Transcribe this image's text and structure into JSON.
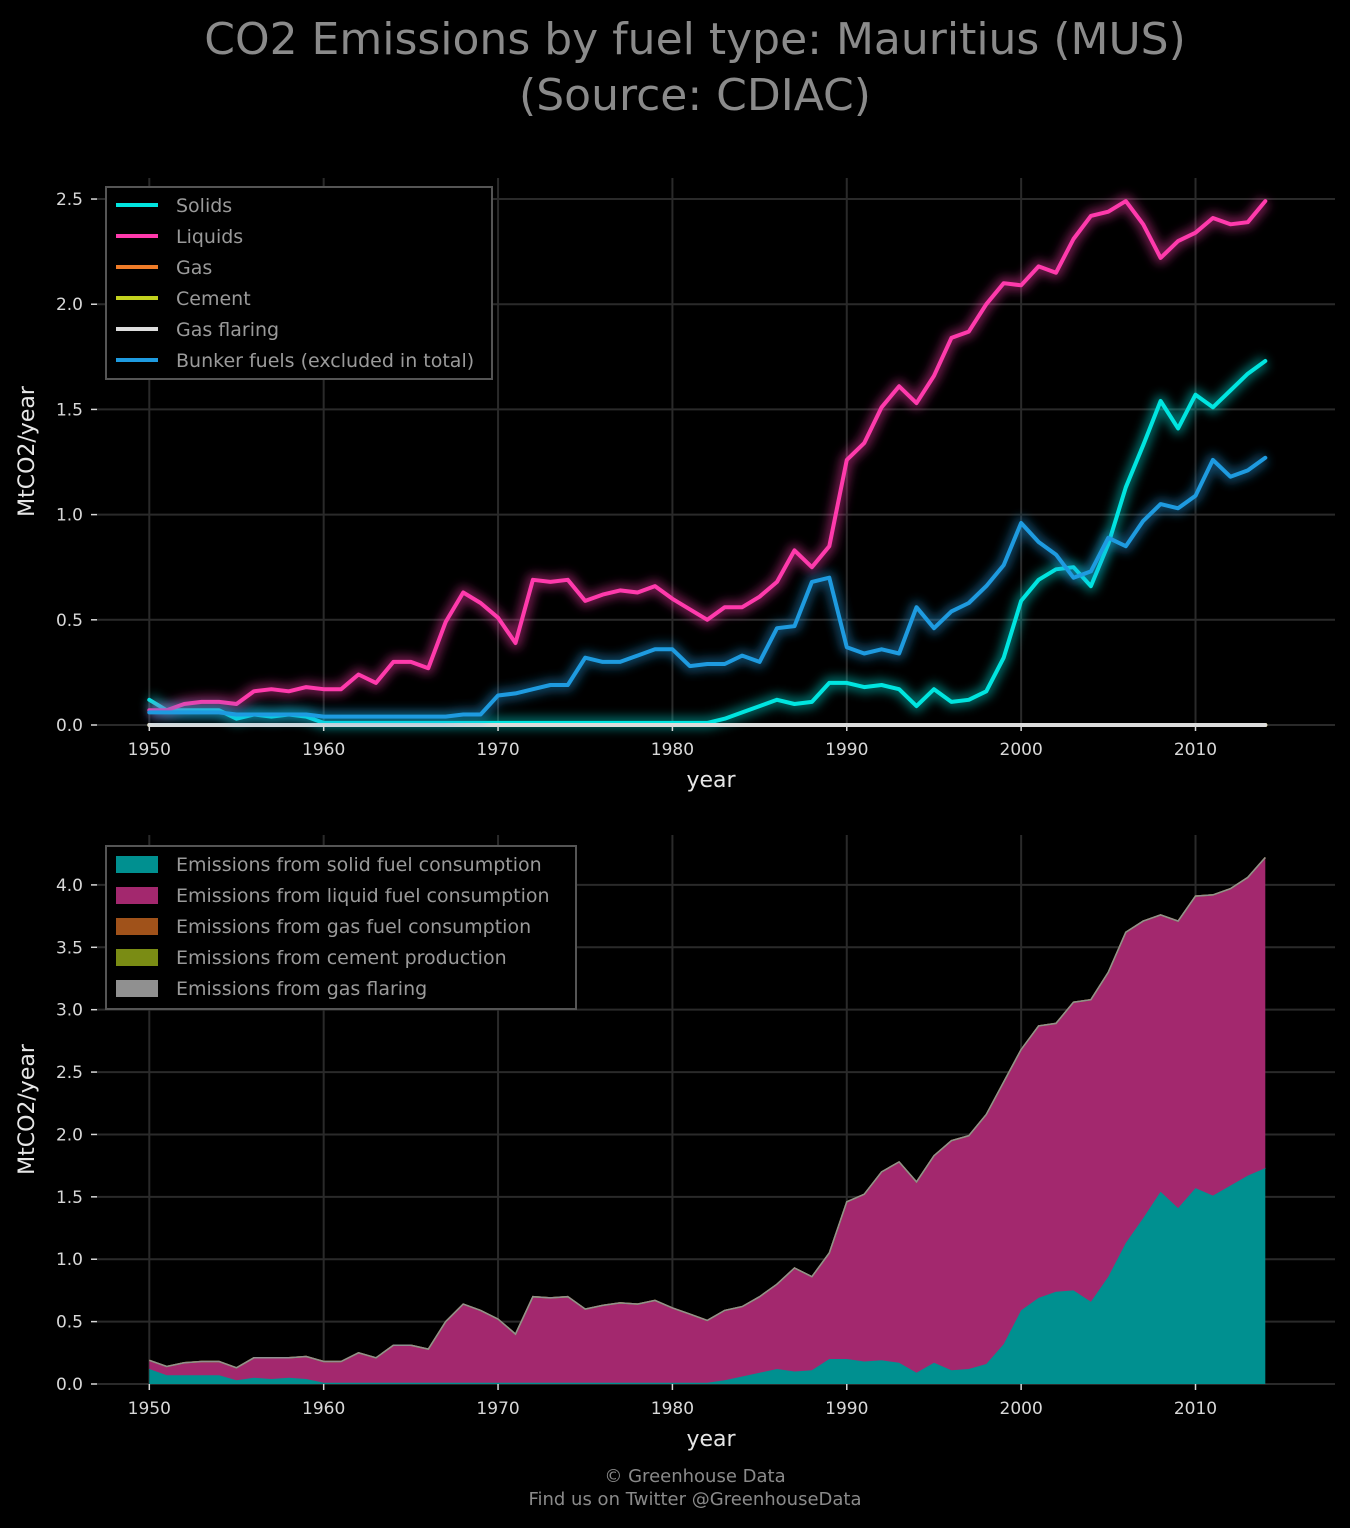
{
  "title_line1": "CO2 Emissions by fuel type: Mauritius (MUS)",
  "title_line2": "(Source: CDIAC)",
  "footer_line1": "© Greenhouse Data",
  "footer_line2": "Find us on Twitter @GreenhouseData",
  "chart_data": [
    {
      "type": "line",
      "xlabel": "year",
      "ylabel": "MtCO2/year",
      "xlim": [
        1947,
        2018
      ],
      "ylim": [
        0,
        2.6
      ],
      "xticks": [
        1950,
        1960,
        1970,
        1980,
        1990,
        2000,
        2010
      ],
      "yticks": [
        0.0,
        0.5,
        1.0,
        1.5,
        2.0,
        2.5
      ],
      "grid": true,
      "legend_position": "top-left",
      "x": [
        1950,
        1951,
        1952,
        1953,
        1954,
        1955,
        1956,
        1957,
        1958,
        1959,
        1960,
        1961,
        1962,
        1963,
        1964,
        1965,
        1966,
        1967,
        1968,
        1969,
        1970,
        1971,
        1972,
        1973,
        1974,
        1975,
        1976,
        1977,
        1978,
        1979,
        1980,
        1981,
        1982,
        1983,
        1984,
        1985,
        1986,
        1987,
        1988,
        1989,
        1990,
        1991,
        1992,
        1993,
        1994,
        1995,
        1996,
        1997,
        1998,
        1999,
        2000,
        2001,
        2002,
        2003,
        2004,
        2005,
        2006,
        2007,
        2008,
        2009,
        2010,
        2011,
        2012,
        2013,
        2014
      ],
      "series": [
        {
          "name": "Solids",
          "color": "#00e5e0",
          "values": [
            0.12,
            0.07,
            0.07,
            0.07,
            0.07,
            0.03,
            0.05,
            0.04,
            0.05,
            0.04,
            0.01,
            0.01,
            0.01,
            0.01,
            0.01,
            0.01,
            0.01,
            0.01,
            0.01,
            0.01,
            0.01,
            0.01,
            0.01,
            0.01,
            0.01,
            0.01,
            0.01,
            0.01,
            0.01,
            0.01,
            0.01,
            0.01,
            0.01,
            0.03,
            0.06,
            0.09,
            0.12,
            0.1,
            0.11,
            0.2,
            0.2,
            0.18,
            0.19,
            0.17,
            0.09,
            0.17,
            0.11,
            0.12,
            0.16,
            0.32,
            0.59,
            0.69,
            0.74,
            0.75,
            0.66,
            0.86,
            1.13,
            1.33,
            1.54,
            1.41,
            1.57,
            1.51,
            1.59,
            1.67,
            1.73
          ]
        },
        {
          "name": "Liquids",
          "color": "#ff3aac",
          "values": [
            0.07,
            0.07,
            0.1,
            0.11,
            0.11,
            0.1,
            0.16,
            0.17,
            0.16,
            0.18,
            0.17,
            0.17,
            0.24,
            0.2,
            0.3,
            0.3,
            0.27,
            0.49,
            0.63,
            0.58,
            0.51,
            0.39,
            0.69,
            0.68,
            0.69,
            0.59,
            0.62,
            0.64,
            0.63,
            0.66,
            0.6,
            0.55,
            0.5,
            0.56,
            0.56,
            0.61,
            0.68,
            0.83,
            0.75,
            0.85,
            1.26,
            1.34,
            1.51,
            1.61,
            1.53,
            1.66,
            1.84,
            1.87,
            2.0,
            2.1,
            2.09,
            2.18,
            2.15,
            2.31,
            2.42,
            2.44,
            2.49,
            2.38,
            2.22,
            2.3,
            2.34,
            2.41,
            2.38,
            2.39,
            2.49
          ]
        },
        {
          "name": "Gas",
          "color": "#f07c28",
          "values": [
            0,
            0,
            0,
            0,
            0,
            0,
            0,
            0,
            0,
            0,
            0,
            0,
            0,
            0,
            0,
            0,
            0,
            0,
            0,
            0,
            0,
            0,
            0,
            0,
            0,
            0,
            0,
            0,
            0,
            0,
            0,
            0,
            0,
            0,
            0,
            0,
            0,
            0,
            0,
            0,
            0,
            0,
            0,
            0,
            0,
            0,
            0,
            0,
            0,
            0,
            0,
            0,
            0,
            0,
            0,
            0,
            0,
            0,
            0,
            0,
            0,
            0,
            0,
            0,
            0
          ]
        },
        {
          "name": "Cement",
          "color": "#c3d21e",
          "values": [
            0,
            0,
            0,
            0,
            0,
            0,
            0,
            0,
            0,
            0,
            0,
            0,
            0,
            0,
            0,
            0,
            0,
            0,
            0,
            0,
            0,
            0,
            0,
            0,
            0,
            0,
            0,
            0,
            0,
            0,
            0,
            0,
            0,
            0,
            0,
            0,
            0,
            0,
            0,
            0,
            0,
            0,
            0,
            0,
            0,
            0,
            0,
            0,
            0,
            0,
            0,
            0,
            0,
            0,
            0,
            0,
            0,
            0,
            0,
            0,
            0,
            0,
            0,
            0,
            0
          ]
        },
        {
          "name": "Gas flaring",
          "color": "#dddddd",
          "values": [
            0,
            0,
            0,
            0,
            0,
            0,
            0,
            0,
            0,
            0,
            0,
            0,
            0,
            0,
            0,
            0,
            0,
            0,
            0,
            0,
            0,
            0,
            0,
            0,
            0,
            0,
            0,
            0,
            0,
            0,
            0,
            0,
            0,
            0,
            0,
            0,
            0,
            0,
            0,
            0,
            0,
            0,
            0,
            0,
            0,
            0,
            0,
            0,
            0,
            0,
            0,
            0,
            0,
            0,
            0,
            0,
            0,
            0,
            0,
            0,
            0,
            0,
            0,
            0,
            0
          ]
        },
        {
          "name": "Bunker fuels (excluded in total)",
          "color": "#1e9be0",
          "values": [
            0.06,
            0.06,
            0.06,
            0.06,
            0.06,
            0.05,
            0.05,
            0.05,
            0.05,
            0.05,
            0.04,
            0.04,
            0.04,
            0.04,
            0.04,
            0.04,
            0.04,
            0.04,
            0.05,
            0.05,
            0.14,
            0.15,
            0.17,
            0.19,
            0.19,
            0.32,
            0.3,
            0.3,
            0.33,
            0.36,
            0.36,
            0.28,
            0.29,
            0.29,
            0.33,
            0.3,
            0.46,
            0.47,
            0.68,
            0.7,
            0.37,
            0.34,
            0.36,
            0.34,
            0.56,
            0.46,
            0.54,
            0.58,
            0.66,
            0.76,
            0.96,
            0.87,
            0.81,
            0.7,
            0.73,
            0.89,
            0.85,
            0.97,
            1.05,
            1.03,
            1.09,
            1.26,
            1.18,
            1.21,
            1.27
          ]
        }
      ]
    },
    {
      "type": "area",
      "stacked": true,
      "xlabel": "year",
      "ylabel": "MtCO2/year",
      "xlim": [
        1947,
        2018
      ],
      "ylim": [
        0,
        4.4
      ],
      "xticks": [
        1950,
        1960,
        1970,
        1980,
        1990,
        2000,
        2010
      ],
      "yticks": [
        0.0,
        0.5,
        1.0,
        1.5,
        2.0,
        2.5,
        3.0,
        3.5,
        4.0
      ],
      "grid": true,
      "legend_position": "top-left",
      "x": [
        1950,
        1951,
        1952,
        1953,
        1954,
        1955,
        1956,
        1957,
        1958,
        1959,
        1960,
        1961,
        1962,
        1963,
        1964,
        1965,
        1966,
        1967,
        1968,
        1969,
        1970,
        1971,
        1972,
        1973,
        1974,
        1975,
        1976,
        1977,
        1978,
        1979,
        1980,
        1981,
        1982,
        1983,
        1984,
        1985,
        1986,
        1987,
        1988,
        1989,
        1990,
        1991,
        1992,
        1993,
        1994,
        1995,
        1996,
        1997,
        1998,
        1999,
        2000,
        2001,
        2002,
        2003,
        2004,
        2005,
        2006,
        2007,
        2008,
        2009,
        2010,
        2011,
        2012,
        2013,
        2014
      ],
      "series": [
        {
          "name": "Emissions from solid fuel consumption",
          "color": "#009090",
          "values": [
            0.12,
            0.07,
            0.07,
            0.07,
            0.07,
            0.03,
            0.05,
            0.04,
            0.05,
            0.04,
            0.01,
            0.01,
            0.01,
            0.01,
            0.01,
            0.01,
            0.01,
            0.01,
            0.01,
            0.01,
            0.01,
            0.01,
            0.01,
            0.01,
            0.01,
            0.01,
            0.01,
            0.01,
            0.01,
            0.01,
            0.01,
            0.01,
            0.01,
            0.03,
            0.06,
            0.09,
            0.12,
            0.1,
            0.11,
            0.2,
            0.2,
            0.18,
            0.19,
            0.17,
            0.09,
            0.17,
            0.11,
            0.12,
            0.16,
            0.32,
            0.59,
            0.69,
            0.74,
            0.75,
            0.66,
            0.86,
            1.13,
            1.33,
            1.54,
            1.41,
            1.57,
            1.51,
            1.59,
            1.67,
            1.73
          ]
        },
        {
          "name": "Emissions from liquid fuel consumption",
          "color": "#a3286e",
          "values": [
            0.07,
            0.07,
            0.1,
            0.11,
            0.11,
            0.1,
            0.16,
            0.17,
            0.16,
            0.18,
            0.17,
            0.17,
            0.24,
            0.2,
            0.3,
            0.3,
            0.27,
            0.49,
            0.63,
            0.58,
            0.51,
            0.39,
            0.69,
            0.68,
            0.69,
            0.59,
            0.62,
            0.64,
            0.63,
            0.66,
            0.6,
            0.55,
            0.5,
            0.56,
            0.56,
            0.61,
            0.68,
            0.83,
            0.75,
            0.85,
            1.26,
            1.34,
            1.51,
            1.61,
            1.53,
            1.66,
            1.84,
            1.87,
            2.0,
            2.1,
            2.09,
            2.18,
            2.15,
            2.31,
            2.42,
            2.44,
            2.49,
            2.38,
            2.22,
            2.3,
            2.34,
            2.41,
            2.38,
            2.39,
            2.49
          ]
        },
        {
          "name": "Emissions from gas fuel consumption",
          "color": "#a0521a",
          "values": [
            0,
            0,
            0,
            0,
            0,
            0,
            0,
            0,
            0,
            0,
            0,
            0,
            0,
            0,
            0,
            0,
            0,
            0,
            0,
            0,
            0,
            0,
            0,
            0,
            0,
            0,
            0,
            0,
            0,
            0,
            0,
            0,
            0,
            0,
            0,
            0,
            0,
            0,
            0,
            0,
            0,
            0,
            0,
            0,
            0,
            0,
            0,
            0,
            0,
            0,
            0,
            0,
            0,
            0,
            0,
            0,
            0,
            0,
            0,
            0,
            0,
            0,
            0,
            0,
            0
          ]
        },
        {
          "name": "Emissions from cement production",
          "color": "#7a8c14",
          "values": [
            0,
            0,
            0,
            0,
            0,
            0,
            0,
            0,
            0,
            0,
            0,
            0,
            0,
            0,
            0,
            0,
            0,
            0,
            0,
            0,
            0,
            0,
            0,
            0,
            0,
            0,
            0,
            0,
            0,
            0,
            0,
            0,
            0,
            0,
            0,
            0,
            0,
            0,
            0,
            0,
            0,
            0,
            0,
            0,
            0,
            0,
            0,
            0,
            0,
            0,
            0,
            0,
            0,
            0,
            0,
            0,
            0,
            0,
            0,
            0,
            0,
            0,
            0,
            0,
            0
          ]
        },
        {
          "name": "Emissions from gas flaring",
          "color": "#909090",
          "values": [
            0,
            0,
            0,
            0,
            0,
            0,
            0,
            0,
            0,
            0,
            0,
            0,
            0,
            0,
            0,
            0,
            0,
            0,
            0,
            0,
            0,
            0,
            0,
            0,
            0,
            0,
            0,
            0,
            0,
            0,
            0,
            0,
            0,
            0,
            0,
            0,
            0,
            0,
            0,
            0,
            0,
            0,
            0,
            0,
            0,
            0,
            0,
            0,
            0,
            0,
            0,
            0,
            0,
            0,
            0,
            0,
            0,
            0,
            0,
            0,
            0,
            0,
            0,
            0,
            0
          ]
        }
      ]
    }
  ]
}
